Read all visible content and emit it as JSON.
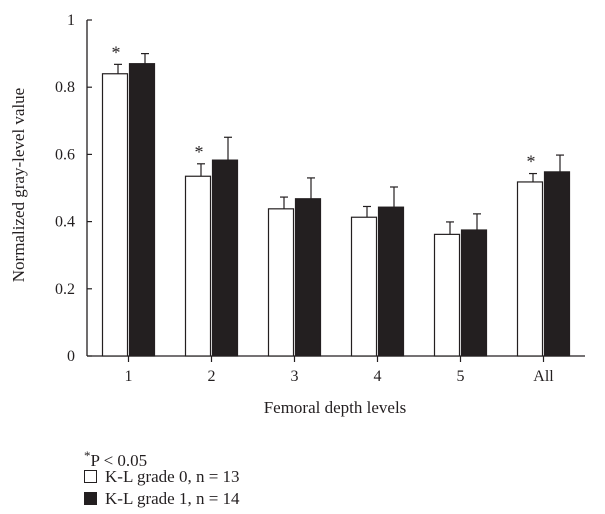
{
  "chart_data": {
    "type": "bar",
    "xlabel": "Femoral depth levels",
    "ylabel": "Normalized gray-level value",
    "categories": [
      "1",
      "2",
      "3",
      "4",
      "5",
      "All"
    ],
    "ylim": [
      0,
      1
    ],
    "yticks": [
      "0",
      "0.2",
      "0.4",
      "0.6",
      "0.8",
      "1"
    ],
    "grid": false,
    "series": [
      {
        "name": "K-L grade 0, n = 13",
        "fill": "#ffffff",
        "values": [
          0.84,
          0.535,
          0.438,
          0.413,
          0.362,
          0.518
        ],
        "errors": [
          0.028,
          0.037,
          0.035,
          0.032,
          0.037,
          0.025
        ]
      },
      {
        "name": "K-L grade 1, n = 14",
        "fill": "#231f20",
        "values": [
          0.87,
          0.583,
          0.468,
          0.443,
          0.375,
          0.548
        ],
        "errors": [
          0.03,
          0.068,
          0.062,
          0.06,
          0.048,
          0.05
        ]
      }
    ],
    "significance_marker": "*",
    "significant_categories": [
      "1",
      "2",
      "All"
    ]
  },
  "footnote": {
    "star": "*",
    "significance": "P < 0.05"
  },
  "colors": {
    "ink": "#231f20",
    "background": "#ffffff"
  }
}
